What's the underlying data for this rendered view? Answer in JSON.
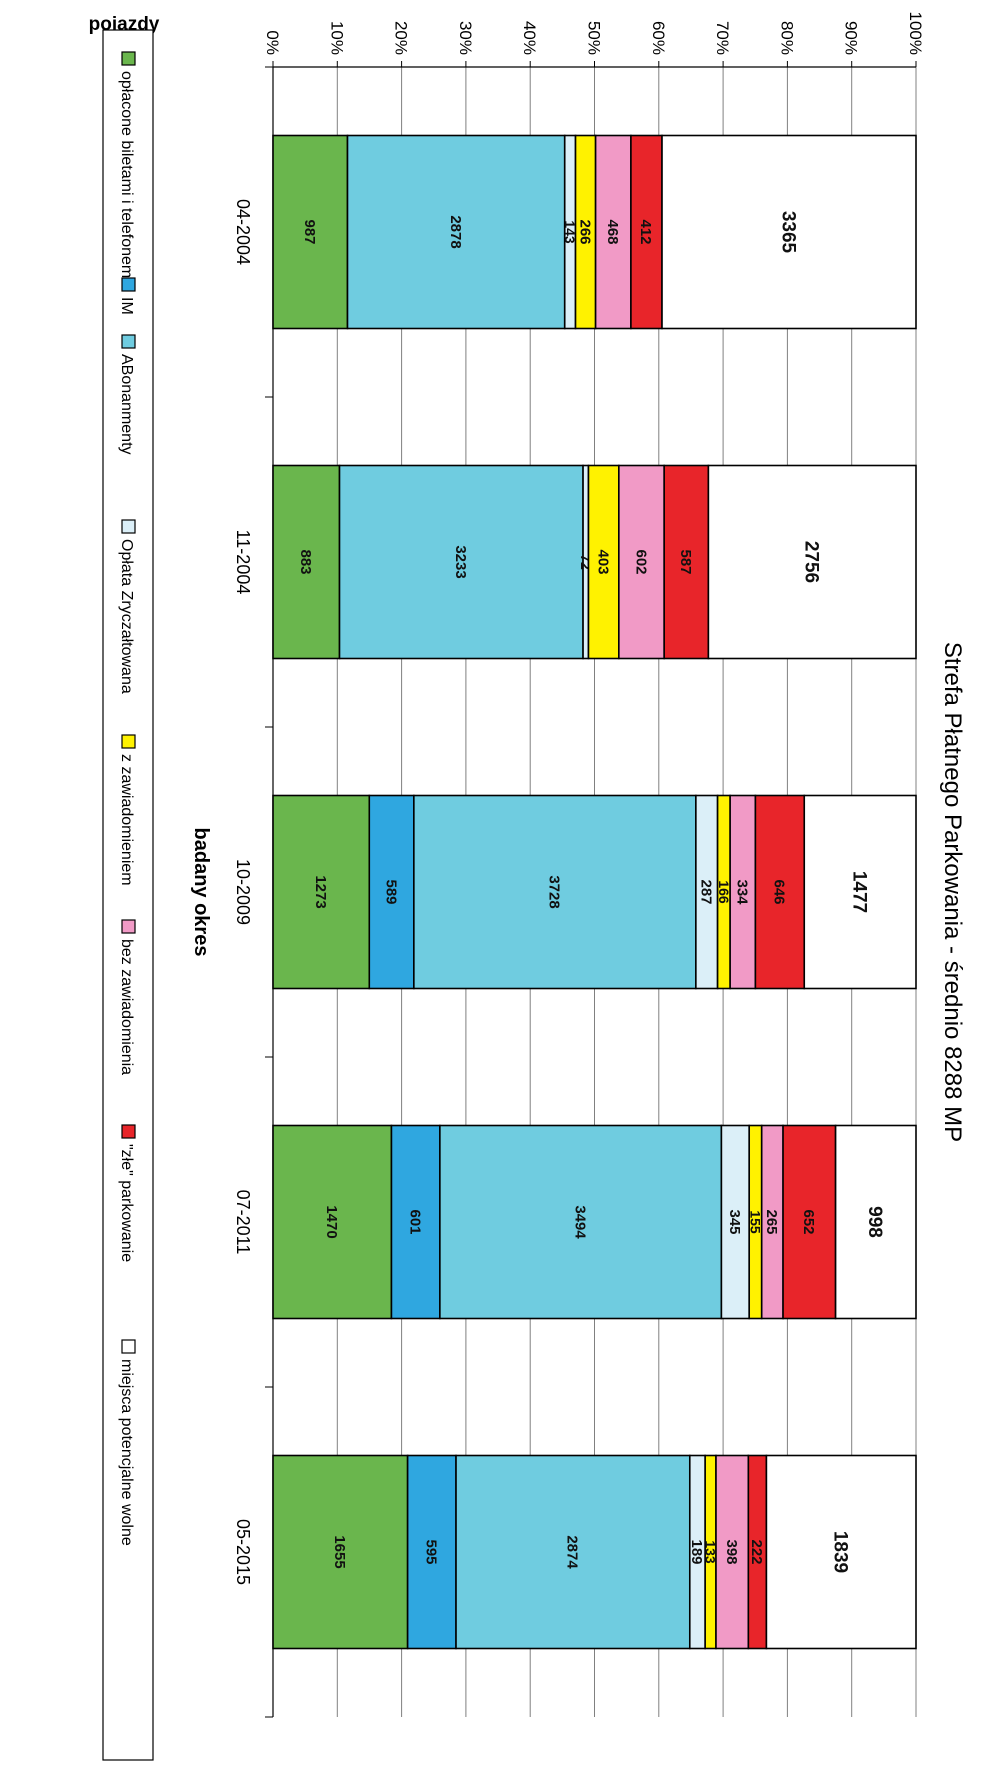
{
  "chart_data": {
    "type": "bar",
    "title": "Strefa Płatnego Parkowania - średnio 8288 MP",
    "xlabel": "badany okres",
    "ylabel": "pojazdy",
    "stacked": "percent",
    "orientation": "vertical",
    "grid": true,
    "legend_position": "bottom",
    "ylim": [
      0,
      100
    ],
    "y_ticks": [
      "0%",
      "10%",
      "20%",
      "30%",
      "40%",
      "50%",
      "60%",
      "70%",
      "80%",
      "90%",
      "100%"
    ],
    "categories": [
      "04-2004",
      "11-2004",
      "10-2009",
      "07-2011",
      "05-2015"
    ],
    "series": [
      {
        "name": "opłacone biletami i telefonem",
        "color": "#6ab64d",
        "values": [
          987,
          883,
          1273,
          1470,
          1655
        ]
      },
      {
        "name": "IM",
        "color": "#2fa7e0",
        "values": [
          0,
          0,
          589,
          601,
          595
        ]
      },
      {
        "name": "ABonanmenty",
        "color": "#6fcce0",
        "values": [
          2878,
          3233,
          3728,
          3494,
          2874
        ]
      },
      {
        "name": "Opłata Zryczałtowana",
        "color": "#dbeff8",
        "values": [
          143,
          72,
          287,
          345,
          189
        ]
      },
      {
        "name": "z zawiadomieniem",
        "color": "#fff200",
        "values": [
          266,
          403,
          166,
          155,
          133
        ]
      },
      {
        "name": "bez zawiadomienia",
        "color": "#f19ac6",
        "values": [
          468,
          602,
          334,
          265,
          398
        ]
      },
      {
        "name": "\"złe\" parkowanie",
        "color": "#e8252a",
        "values": [
          412,
          587,
          646,
          652,
          222
        ]
      },
      {
        "name": "miejsca potencjalne wolne",
        "color": "#ffffff",
        "values": [
          3365,
          2756,
          1477,
          998,
          1839
        ]
      }
    ],
    "labels": [
      [
        "987",
        "",
        "2878",
        "143",
        "266",
        "468",
        "412",
        "3365"
      ],
      [
        "883",
        "",
        "3233",
        "72",
        "403",
        "602",
        "587",
        "2756"
      ],
      [
        "1273",
        "589",
        "3728",
        "287",
        "166",
        "334",
        "646",
        "1477"
      ],
      [
        "1470",
        "601",
        "3494",
        "345",
        "155",
        "265",
        "652",
        "998"
      ],
      [
        "1655",
        "595",
        "2874",
        "189",
        "133",
        "398",
        "222",
        "1839"
      ]
    ]
  }
}
